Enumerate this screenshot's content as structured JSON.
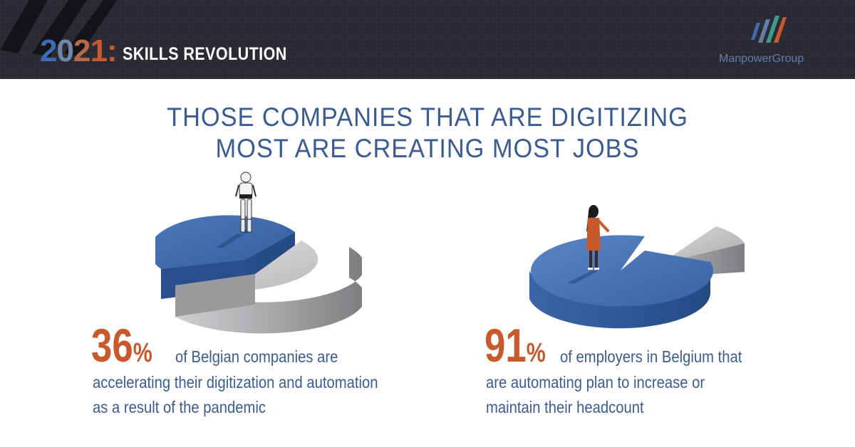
{
  "header": {
    "year": "2021",
    "colon": ":",
    "title": "SKILLS REVOLUTION",
    "brand": "ManpowerGroup"
  },
  "headline": {
    "line1": "THOSE COMPANIES THAT ARE DIGITIZING",
    "line2": "MOST ARE CREATING MOST JOBS"
  },
  "colors": {
    "header_bg": "#2b2a33",
    "accent_orange": "#c8592c",
    "accent_blue": "#3a5c92",
    "pie_blue": "#3f6bb0",
    "pie_gray": "#c9c9cb"
  },
  "chart_data": [
    {
      "type": "pie",
      "title": "",
      "values": [
        36,
        64
      ],
      "value_label": "36%",
      "description_line1": "of Belgian companies are",
      "description_line2": "accelerating their digitization and automation",
      "description_line3": "as a result of the pandemic",
      "colors": [
        "#3f6bb0",
        "#c9c9cb"
      ]
    },
    {
      "type": "pie",
      "title": "",
      "values": [
        91,
        9
      ],
      "value_label": "91%",
      "description_line1": "of employers in Belgium that",
      "description_line2": "are automating plan to increase or",
      "description_line3": "maintain their headcount",
      "colors": [
        "#3f6bb0",
        "#c9c9cb"
      ]
    }
  ]
}
